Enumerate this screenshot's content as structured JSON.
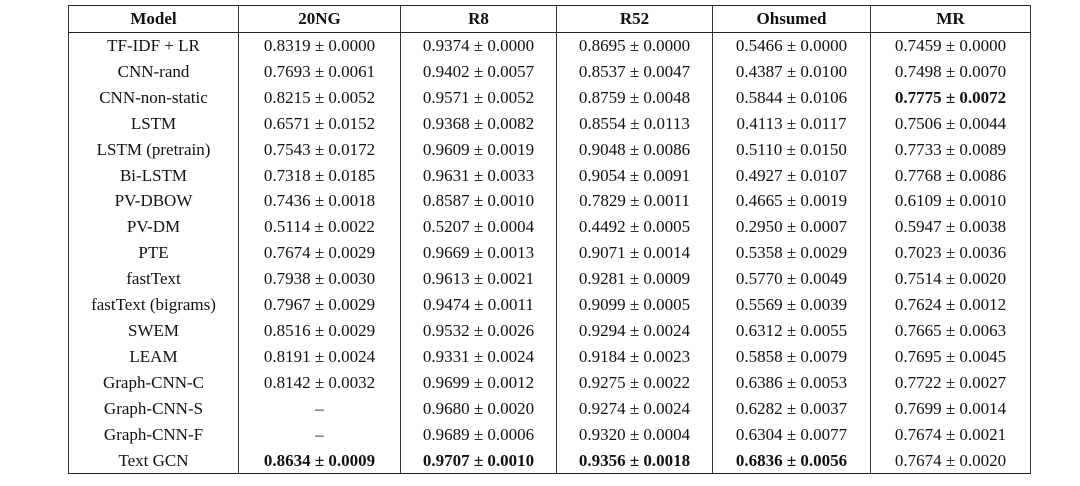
{
  "table": {
    "header": [
      "Model",
      "20NG",
      "R8",
      "R52",
      "Ohsumed",
      "MR"
    ],
    "rows": [
      [
        "TF-IDF + LR",
        "0.8319 ± 0.0000",
        "0.9374 ± 0.0000",
        "0.8695 ± 0.0000",
        "0.5466 ± 0.0000",
        "0.7459 ± 0.0000"
      ],
      [
        "CNN-rand",
        "0.7693 ± 0.0061",
        "0.9402 ± 0.0057",
        "0.8537 ± 0.0047",
        "0.4387 ± 0.0100",
        "0.7498 ± 0.0070"
      ],
      [
        "CNN-non-static",
        "0.8215 ± 0.0052",
        "0.9571 ± 0.0052",
        "0.8759 ± 0.0048",
        "0.5844 ± 0.0106",
        {
          "text": "0.7775 ± 0.0072",
          "bold": true
        }
      ],
      [
        "LSTM",
        "0.6571 ± 0.0152",
        "0.9368 ± 0.0082",
        "0.8554 ± 0.0113",
        "0.4113 ± 0.0117",
        "0.7506 ± 0.0044"
      ],
      [
        "LSTM (pretrain)",
        "0.7543 ± 0.0172",
        "0.9609 ± 0.0019",
        "0.9048 ± 0.0086",
        "0.5110 ± 0.0150",
        "0.7733 ± 0.0089"
      ],
      [
        "Bi-LSTM",
        "0.7318 ± 0.0185",
        "0.9631 ± 0.0033",
        "0.9054 ± 0.0091",
        "0.4927 ± 0.0107",
        "0.7768 ± 0.0086"
      ],
      [
        "PV-DBOW",
        "0.7436 ± 0.0018",
        "0.8587 ± 0.0010",
        "0.7829 ± 0.0011",
        "0.4665 ± 0.0019",
        "0.6109 ± 0.0010"
      ],
      [
        "PV-DM",
        "0.5114 ± 0.0022",
        "0.5207 ± 0.0004",
        "0.4492 ± 0.0005",
        "0.2950 ± 0.0007",
        "0.5947 ± 0.0038"
      ],
      [
        "PTE",
        "0.7674 ± 0.0029",
        "0.9669 ± 0.0013",
        "0.9071 ± 0.0014",
        "0.5358 ± 0.0029",
        "0.7023 ± 0.0036"
      ],
      [
        "fastText",
        "0.7938 ± 0.0030",
        "0.9613 ± 0.0021",
        "0.9281 ± 0.0009",
        "0.5770 ± 0.0049",
        "0.7514 ± 0.0020"
      ],
      [
        "fastText (bigrams)",
        "0.7967 ± 0.0029",
        "0.9474 ± 0.0011",
        "0.9099 ± 0.0005",
        "0.5569 ± 0.0039",
        "0.7624 ± 0.0012"
      ],
      [
        "SWEM",
        "0.8516 ± 0.0029",
        "0.9532 ± 0.0026",
        "0.9294 ± 0.0024",
        "0.6312 ± 0.0055",
        "0.7665 ± 0.0063"
      ],
      [
        "LEAM",
        "0.8191 ± 0.0024",
        "0.9331 ± 0.0024",
        "0.9184 ± 0.0023",
        "0.5858 ± 0.0079",
        "0.7695 ± 0.0045"
      ],
      [
        "Graph-CNN-C",
        "0.8142 ± 0.0032",
        "0.9699 ± 0.0012",
        "0.9275 ± 0.0022",
        "0.6386 ± 0.0053",
        "0.7722 ± 0.0027"
      ],
      [
        "Graph-CNN-S",
        "–",
        "0.9680 ± 0.0020",
        "0.9274 ± 0.0024",
        "0.6282 ± 0.0037",
        "0.7699 ± 0.0014"
      ],
      [
        "Graph-CNN-F",
        "–",
        "0.9689 ± 0.0006",
        "0.9320 ± 0.0004",
        "0.6304 ± 0.0077",
        "0.7674 ± 0.0021"
      ],
      [
        "Text GCN",
        {
          "text": "0.8634 ± 0.0009",
          "bold": true
        },
        {
          "text": "0.9707 ± 0.0010",
          "bold": true
        },
        {
          "text": "0.9356 ± 0.0018",
          "bold": true
        },
        {
          "text": "0.6836 ± 0.0056",
          "bold": true
        },
        "0.7674 ± 0.0020"
      ]
    ]
  }
}
